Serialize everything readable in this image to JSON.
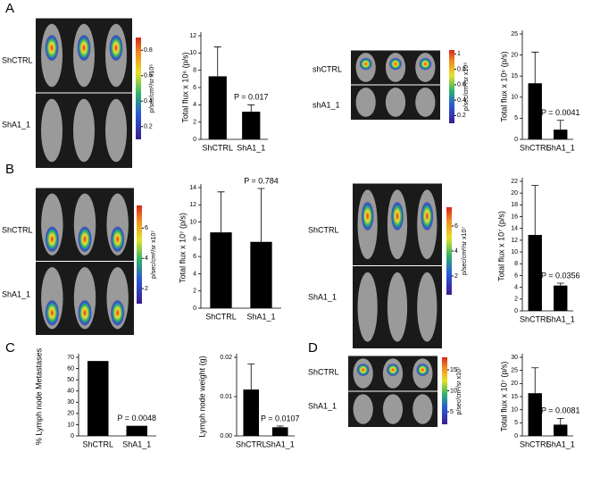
{
  "panel_labels": [
    "A",
    "B",
    "C",
    "D"
  ],
  "images": [
    {
      "labels": [
        "ShCTRL",
        "ShA1_1"
      ],
      "colorbar": {
        "label": "p/sec/cm²/sr  x10⁶",
        "lim": [
          0.1,
          0.9
        ],
        "ticks": [
          0.2,
          0.4,
          0.6,
          0.8
        ]
      }
    },
    {
      "labels": [
        "shCTRL",
        "shA1_1"
      ],
      "colorbar": {
        "label": "p/sec/cm²/sr  x10⁶",
        "lim": [
          0.1,
          1.05
        ],
        "ticks": [
          0.2,
          0.4,
          0.6,
          0.8,
          1
        ]
      }
    },
    {
      "labels": [
        "ShCTRL",
        "ShA1_1"
      ],
      "colorbar": {
        "label": "p/sec/cm²/sr  x10⁷",
        "lim": [
          1,
          7.5
        ],
        "ticks": [
          2,
          4,
          6
        ]
      }
    },
    {
      "labels": [
        "ShCTRL",
        "ShA1_1"
      ],
      "colorbar": {
        "label": "p/sec/cm²/sr  x10⁷",
        "lim": [
          0.5,
          7.5
        ],
        "ticks": [
          2,
          4,
          6
        ]
      }
    },
    {
      "labels": [
        "ShCTRL",
        "ShA1_1"
      ],
      "colorbar": {
        "label": "p/sec/cm²/sr  x10⁷",
        "lim": [
          2,
          18
        ],
        "ticks": [
          5,
          10,
          15
        ]
      }
    }
  ],
  "chart_data": [
    {
      "type": "bar",
      "ylabel": "Total flux x 10⁶ (p/s)",
      "categories": [
        "ShCTRL",
        "ShA1_1"
      ],
      "values": [
        7.3,
        3.2
      ],
      "errors": [
        3.4,
        0.8
      ],
      "color": "#000000",
      "ylim": [
        0,
        12
      ],
      "yticks": [
        0,
        2,
        4,
        6,
        8,
        10,
        12
      ],
      "annotation": "P = 0.017"
    },
    {
      "type": "bar",
      "ylabel": "Total flux x 10⁶ (p/s)",
      "categories": [
        "ShCTRL",
        "ShA1_1"
      ],
      "values": [
        13.3,
        2.3
      ],
      "errors": [
        7.4,
        2.2
      ],
      "color": "#000000",
      "ylim": [
        0,
        25
      ],
      "yticks": [
        0,
        5,
        10,
        15,
        20,
        25
      ],
      "annotation": "P = 0.0041"
    },
    {
      "type": "bar",
      "ylabel": "Total flux x 10⁷ (p/s)",
      "categories": [
        "ShCTRL",
        "ShA1_1"
      ],
      "values": [
        8.8,
        7.7
      ],
      "errors": [
        4.7,
        6.2
      ],
      "color": "#000000",
      "ylim": [
        0,
        14
      ],
      "yticks": [
        0,
        2,
        4,
        6,
        8,
        10,
        12,
        14
      ],
      "annotation": "P = 0.784"
    },
    {
      "type": "bar",
      "ylabel": "Total flux x 10⁷ (p/s)",
      "categories": [
        "ShCTRL",
        "ShA1_1"
      ],
      "values": [
        12.9,
        4.3
      ],
      "errors": [
        8.4,
        0.4
      ],
      "color": "#000000",
      "ylim": [
        0,
        22
      ],
      "yticks": [
        0,
        2,
        4,
        6,
        8,
        10,
        12,
        14,
        16,
        18,
        20,
        22
      ],
      "annotation": "P = 0.0356"
    },
    {
      "type": "bar",
      "ylabel": "% Lymph node Metastases",
      "categories": [
        "ShCTRL",
        "ShA1_1"
      ],
      "values": [
        66.7,
        9
      ],
      "color": "#000000",
      "ylim": [
        0,
        70
      ],
      "yticks": [
        0,
        10,
        20,
        30,
        40,
        50,
        60,
        70
      ],
      "annotation": "P = 0.0048"
    },
    {
      "type": "bar",
      "ylabel": "Lymph node weight (g)",
      "categories": [
        "ShCTRL",
        "ShA1_1"
      ],
      "values": [
        0.0118,
        0.0022
      ],
      "errors": [
        0.0065,
        0.0003
      ],
      "color": "#000000",
      "ylim": [
        0,
        0.02
      ],
      "yticks": [
        {
          "value": 0,
          "label": "0.00"
        },
        {
          "value": 0.01,
          "label": "0.01"
        },
        {
          "value": 0.02,
          "label": "0.02"
        }
      ],
      "annotation": "P = 0.0107"
    },
    {
      "type": "bar",
      "ylabel": "Total flux x 10⁷ (p/s)",
      "categories": [
        "ShCTRL",
        "ShA1_1"
      ],
      "values": [
        16.3,
        4.3
      ],
      "errors": [
        9.7,
        2.4
      ],
      "color": "#000000",
      "ylim": [
        0,
        30
      ],
      "yticks": [
        0,
        5,
        10,
        15,
        20,
        25,
        30
      ],
      "annotation": "P = 0.0081"
    }
  ]
}
